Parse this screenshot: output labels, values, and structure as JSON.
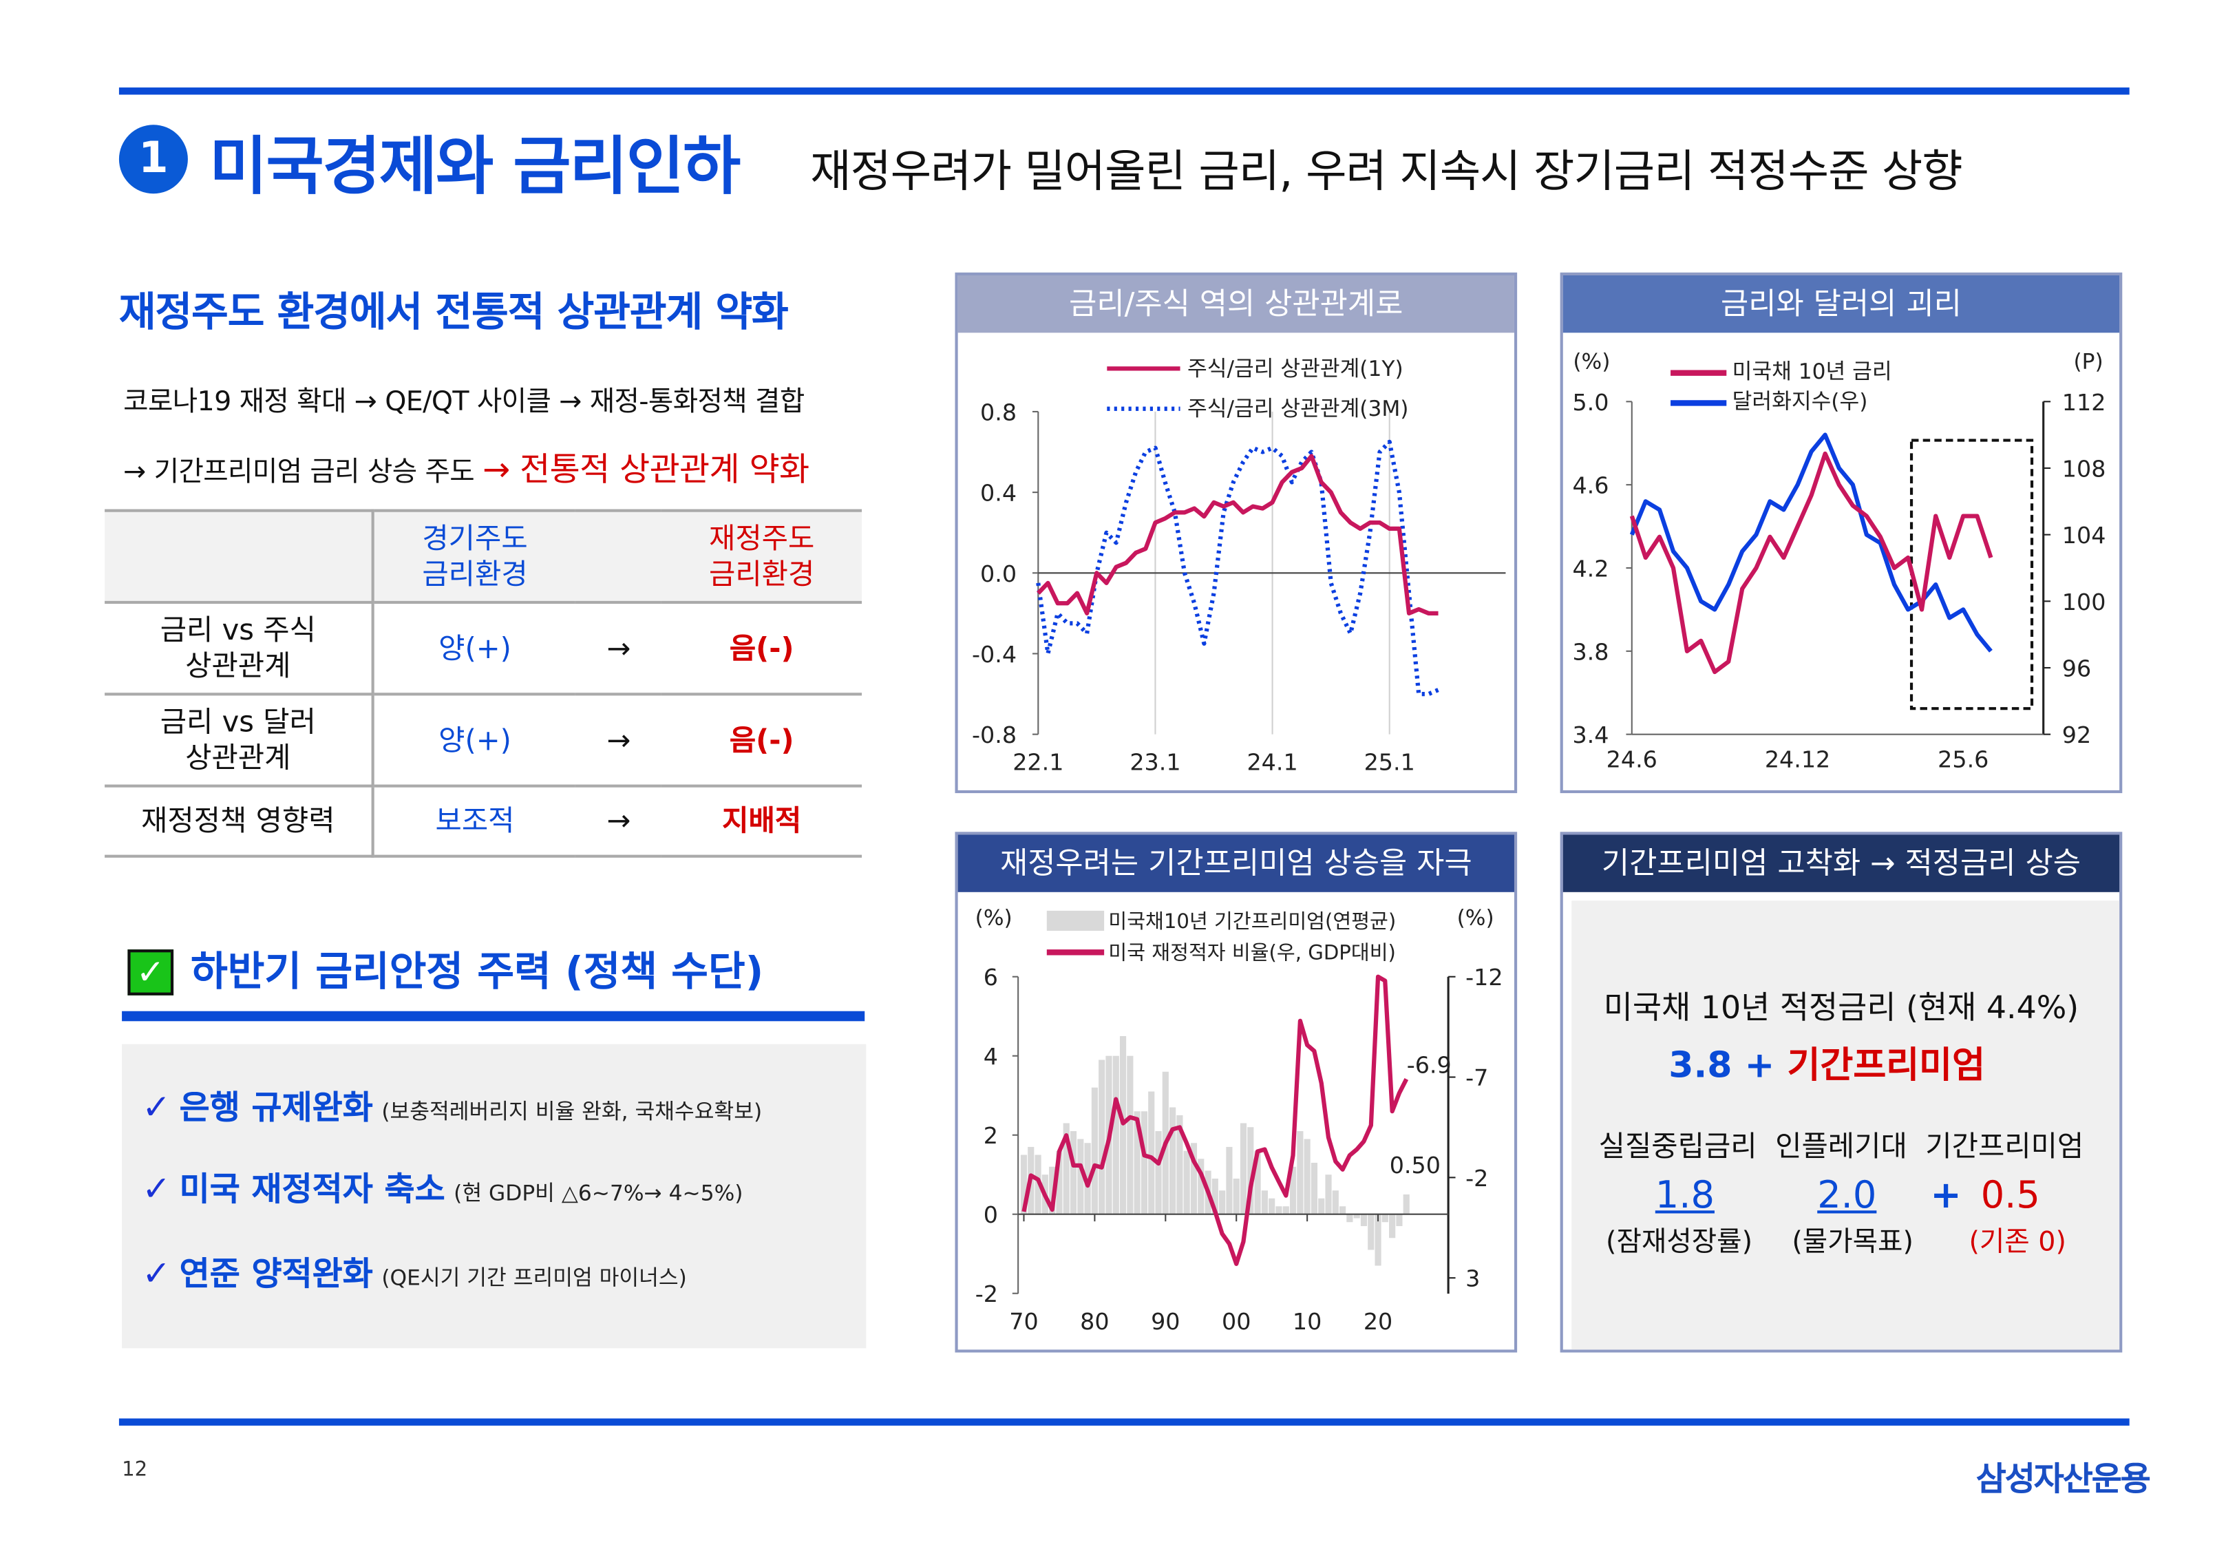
{
  "header": {
    "section_number": "1",
    "title": "미국경제와 금리인하",
    "subtitle": "재정우려가 밀어올린 금리, 우려 지속시 장기금리 적정수준 상향"
  },
  "left": {
    "heading": "재정주도 환경에서 전통적 상관관계 약화",
    "intro_line1": "코로나19 재정 확대 → QE/QT 사이클 → 재정-통화정책 결합",
    "intro_line2_prefix": "→ 기간프리미엄 금리 상승 주도",
    "intro_line2_highlight": "→ 전통적 상관관계 약화",
    "table": {
      "headers": [
        "",
        "경기주도\n금리환경",
        "재정주도\n금리환경"
      ],
      "header_col1_l1": "경기주도",
      "header_col1_l2": "금리환경",
      "header_col2_l1": "재정주도",
      "header_col2_l2": "금리환경",
      "arrow": "→",
      "rows": [
        {
          "label_l1": "금리 vs 주식",
          "label_l2": "상관관계",
          "before": "양(+)",
          "after": "음(-)"
        },
        {
          "label_l1": "금리 vs 달러",
          "label_l2": "상관관계",
          "before": "양(+)",
          "after": "음(-)"
        },
        {
          "label_l1": "재정정책 영향력",
          "label_l2": "",
          "before": "보조적",
          "after": "지배적"
        }
      ]
    },
    "policy_heading": "하반기 금리안정 주력 (정책 수단)",
    "policy_items": [
      {
        "main": "은행 규제완화",
        "note": "(보충적레버리지 비율 완화, 국채수요확보)"
      },
      {
        "main": "미국 재정적자 축소",
        "note": "(현 GDP비 △6~7%→ 4~5%)"
      },
      {
        "main": "연준 양적완화",
        "note": "(QE시기 기간 프리미엄 마이너스)"
      }
    ]
  },
  "colors": {
    "accent": "#0a4bd6",
    "red": "#d40000",
    "series_red": "#c8175d",
    "series_blue": "#0b3fe0",
    "bars": "#d9d9d9"
  },
  "chart_data": [
    {
      "type": "line",
      "title": "금리/주식 역의 상관관계로",
      "x_tick_labels": [
        "22.1",
        "23.1",
        "24.1",
        "25.1"
      ],
      "x_start": "22.1",
      "x_step": "monthly",
      "ylim": [
        -0.8,
        0.8
      ],
      "y_ticks": [
        "0.8",
        "0.4",
        "0.0",
        "-0.4",
        "-0.8"
      ],
      "y_tick_values": [
        0.8,
        0.4,
        0.0,
        -0.4,
        -0.8
      ],
      "legend": [
        "주식/금리 상관관계(1Y)",
        "주식/금리 상관관계(3M)"
      ],
      "series": [
        {
          "name": "주식/금리 상관관계(1Y)",
          "values": [
            -0.1,
            -0.05,
            -0.15,
            -0.15,
            -0.1,
            -0.2,
            0.0,
            -0.05,
            0.03,
            0.05,
            0.1,
            0.12,
            0.25,
            0.27,
            0.3,
            0.3,
            0.32,
            0.28,
            0.35,
            0.33,
            0.35,
            0.3,
            0.33,
            0.32,
            0.35,
            0.45,
            0.5,
            0.52,
            0.58,
            0.45,
            0.4,
            0.3,
            0.25,
            0.22,
            0.25,
            0.25,
            0.22,
            0.22,
            -0.2,
            -0.18,
            -0.2,
            -0.2
          ]
        },
        {
          "name": "주식/금리 상관관계(3M)",
          "values": [
            -0.05,
            -0.4,
            -0.2,
            -0.25,
            -0.25,
            -0.3,
            0.0,
            0.2,
            0.15,
            0.35,
            0.5,
            0.6,
            0.62,
            0.45,
            0.3,
            0.0,
            -0.15,
            -0.35,
            -0.1,
            0.3,
            0.45,
            0.55,
            0.62,
            0.6,
            0.62,
            0.58,
            0.45,
            0.55,
            0.6,
            0.45,
            -0.05,
            -0.2,
            -0.3,
            -0.1,
            0.2,
            0.6,
            0.65,
            0.4,
            -0.1,
            -0.6,
            -0.6,
            -0.58
          ]
        }
      ]
    },
    {
      "type": "line",
      "title": "금리와 달러의 괴리",
      "left_unit": "(%)",
      "right_unit": "(P)",
      "x_tick_labels": [
        "24.6",
        "24.12",
        "25.6"
      ],
      "x_step": "semi-monthly",
      "ylim_left": [
        3.4,
        5.0
      ],
      "ylim_right": [
        92,
        112
      ],
      "y_ticks_left": [
        "5.0",
        "4.6",
        "4.2",
        "3.8",
        "3.4"
      ],
      "y_tick_values_left": [
        5.0,
        4.6,
        4.2,
        3.8,
        3.4
      ],
      "y_ticks_right": [
        "112",
        "108",
        "104",
        "100",
        "96",
        "92"
      ],
      "y_tick_values_right": [
        112,
        108,
        104,
        100,
        96,
        92
      ],
      "legend": [
        "미국채 10년 금리",
        "달러화지수(우)"
      ],
      "highlight": "dashed box from 25.4 onward",
      "series": [
        {
          "name": "미국채 10년 금리",
          "axis": "left",
          "values": [
            4.45,
            4.25,
            4.35,
            4.2,
            3.8,
            3.85,
            3.7,
            3.75,
            4.1,
            4.2,
            4.35,
            4.25,
            4.4,
            4.55,
            4.75,
            4.6,
            4.5,
            4.45,
            4.35,
            4.2,
            4.25,
            4.0,
            4.45,
            4.25,
            4.45,
            4.45,
            4.25
          ]
        },
        {
          "name": "달러화지수(우)",
          "axis": "right",
          "values": [
            104,
            106,
            105.5,
            103,
            102,
            100,
            99.5,
            101,
            103,
            104,
            106,
            105.5,
            107,
            109,
            110,
            108,
            107,
            104,
            103.5,
            101,
            99.5,
            100,
            101,
            99,
            99.5,
            98,
            97
          ]
        }
      ]
    },
    {
      "type": "bar+line",
      "title": "재정우려는 기간프리미엄 상승을 자극",
      "left_unit": "(%)",
      "right_unit": "(%)",
      "x_tick_labels": [
        "70",
        "80",
        "90",
        "00",
        "10",
        "20"
      ],
      "x_tick_years": [
        1970,
        1980,
        1990,
        2000,
        2010,
        2020
      ],
      "ylim_left": [
        -2,
        6
      ],
      "ylim_right_inverted": [
        -12,
        4
      ],
      "y_ticks_left": [
        "6",
        "4",
        "2",
        "0",
        "-2"
      ],
      "y_tick_values_left": [
        6,
        4,
        2,
        0,
        -2
      ],
      "y_ticks_right": [
        "-12",
        "-7",
        "-2",
        "3"
      ],
      "y_tick_values_right": [
        -12,
        -7,
        -2,
        3
      ],
      "legend": [
        "미국채10년 기간프리미엄(연평균)",
        "미국 재정적자 비율(우, GDP대비)"
      ],
      "annotations": [
        "-6.9",
        "0.50"
      ],
      "years_start": 1970,
      "series": [
        {
          "name": "미국채10년 기간프리미엄(연평균)",
          "type": "bar",
          "values": [
            1.5,
            1.7,
            1.5,
            1.0,
            1.2,
            1.6,
            2.3,
            2.1,
            1.9,
            1.8,
            3.2,
            3.9,
            4.0,
            4.0,
            4.5,
            4.0,
            2.6,
            2.6,
            3.1,
            2.1,
            3.6,
            2.7,
            2.5,
            1.6,
            1.8,
            1.4,
            1.1,
            0.9,
            0.6,
            1.7,
            0.9,
            2.3,
            2.2,
            1.6,
            0.6,
            0.4,
            0.2,
            0.2,
            1.2,
            2.1,
            1.9,
            1.3,
            0.4,
            1.0,
            0.6,
            0.2,
            -0.2,
            -0.1,
            -0.3,
            -0.9,
            -1.3,
            -0.2,
            -0.6,
            -0.3,
            0.5
          ]
        },
        {
          "name": "미국 재정적자 비율(우, GDP대비)",
          "type": "line",
          "values": [
            -0.3,
            -2.1,
            -1.9,
            -1.1,
            -0.4,
            -3.3,
            -4.1,
            -2.6,
            -2.6,
            -1.6,
            -2.6,
            -2.5,
            -3.9,
            -5.9,
            -4.7,
            -5.0,
            -4.9,
            -3.1,
            -3.0,
            -2.7,
            -3.7,
            -4.4,
            -4.5,
            -3.7,
            -2.8,
            -2.2,
            -1.3,
            -0.3,
            0.8,
            1.3,
            2.3,
            1.2,
            -1.5,
            -3.3,
            -3.4,
            -2.5,
            -1.8,
            -1.1,
            -3.1,
            -9.8,
            -8.6,
            -8.3,
            -6.7,
            -4.0,
            -2.8,
            -2.4,
            -3.1,
            -3.4,
            -3.8,
            -4.6,
            -14.7,
            -11.8,
            -5.3,
            -6.2,
            -6.9
          ]
        }
      ]
    }
  ],
  "panel4": {
    "title": "기간프리미엄 고착화 → 적정금리 상승",
    "line1": "미국채 10년 적정금리 (현재 4.4%)",
    "base": "3.8",
    "plus": "+",
    "premium_label": "기간프리미엄",
    "components_header": "실질중립금리  인플레기대  기간프리미엄",
    "v1": "1.8",
    "v2": "2.0",
    "plus2": "+",
    "v3": "0.5",
    "l1": "(잠재성장률)",
    "l2": "(물가목표)",
    "l3": "(기존 0)"
  },
  "footer": {
    "page": "12",
    "logo": "삼성자산운용"
  }
}
